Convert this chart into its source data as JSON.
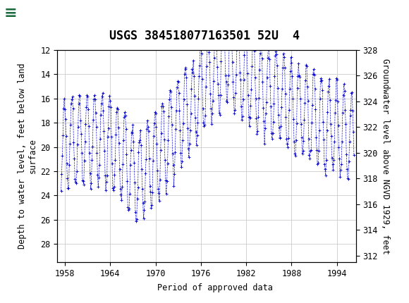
{
  "title": "USGS 384518077163501 52U  4",
  "ylabel_left": "Depth to water level, feet below land\nsurface",
  "ylabel_right": "Groundwater level above NGVD 1929, feet",
  "xlim": [
    1957.0,
    1996.5
  ],
  "ylim_left_top": 12,
  "ylim_left_bottom": 29.5,
  "ylim_right_top": 328,
  "ylim_right_bottom": 311.5,
  "xticks": [
    1958,
    1964,
    1970,
    1976,
    1982,
    1988,
    1994
  ],
  "yticks_left": [
    12,
    14,
    16,
    18,
    20,
    22,
    24,
    26,
    28
  ],
  "yticks_right": [
    328,
    326,
    324,
    322,
    320,
    318,
    316,
    314,
    312
  ],
  "header_color": "#1a6b3c",
  "data_color": "#0000cc",
  "legend_color": "#00bb00",
  "legend_label": "Period of approved data",
  "background_color": "#ffffff",
  "plot_bg_color": "#ffffff",
  "grid_color": "#cccccc",
  "title_fontsize": 12,
  "label_fontsize": 8.5,
  "tick_fontsize": 8.5
}
